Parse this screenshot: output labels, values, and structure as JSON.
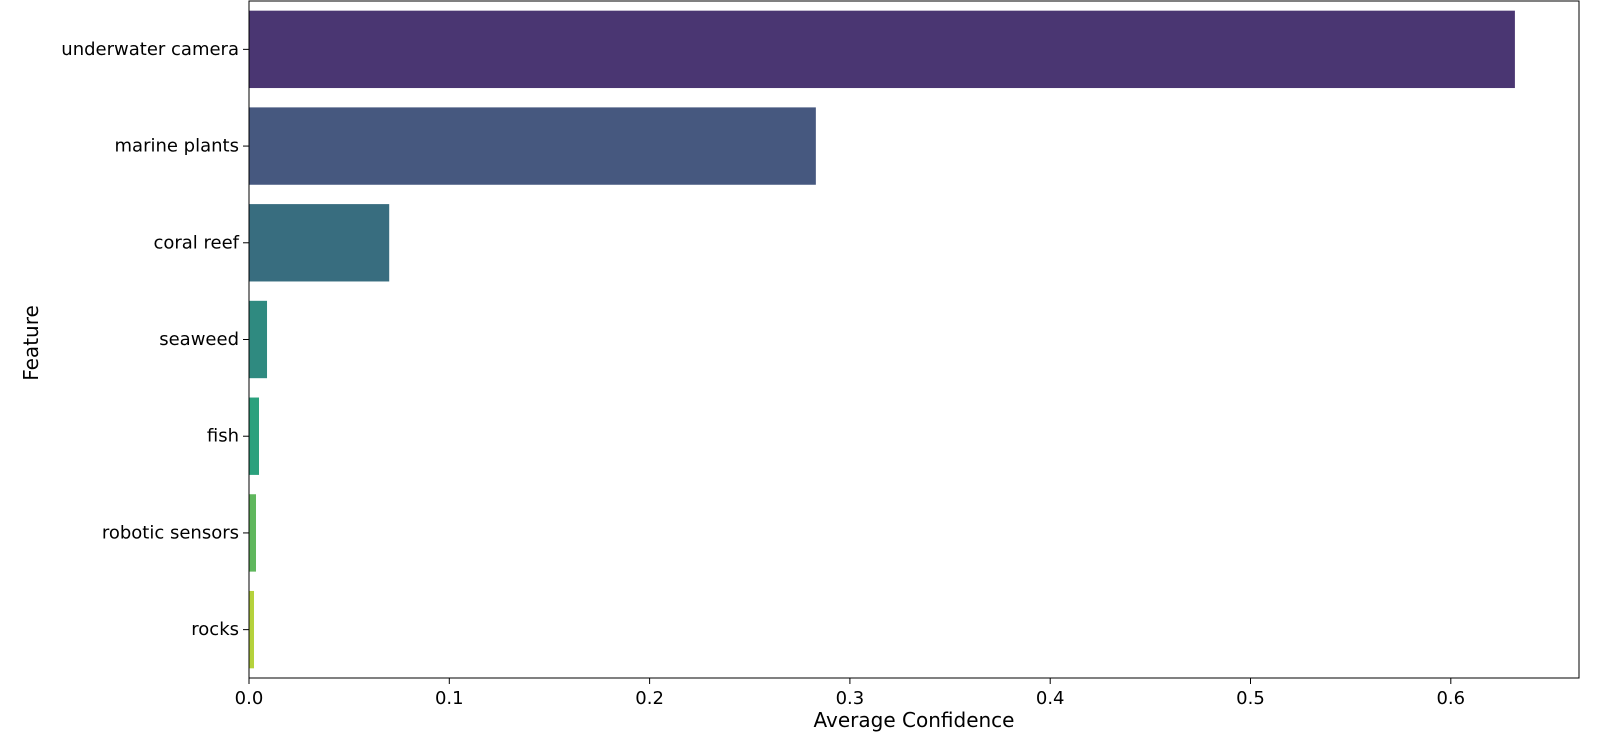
{
  "chart_data": {
    "type": "bar",
    "orientation": "horizontal",
    "xlabel": "Average Confidence",
    "ylabel": "Feature",
    "xlim": [
      0,
      0.664
    ],
    "xticks": [
      "0.0",
      "0.1",
      "0.2",
      "0.3",
      "0.4",
      "0.5",
      "0.6"
    ],
    "grid": false,
    "categories": [
      "underwater camera",
      "marine plants",
      "coral reef",
      "seaweed",
      "fish",
      "robotic sensors",
      "rocks"
    ],
    "values": [
      0.632,
      0.283,
      0.07,
      0.009,
      0.005,
      0.0035,
      0.0025
    ],
    "colors": [
      "#4a3672",
      "#46587f",
      "#386d7f",
      "#2f8a80",
      "#2ba17d",
      "#5fb75d",
      "#b5d23c"
    ]
  }
}
